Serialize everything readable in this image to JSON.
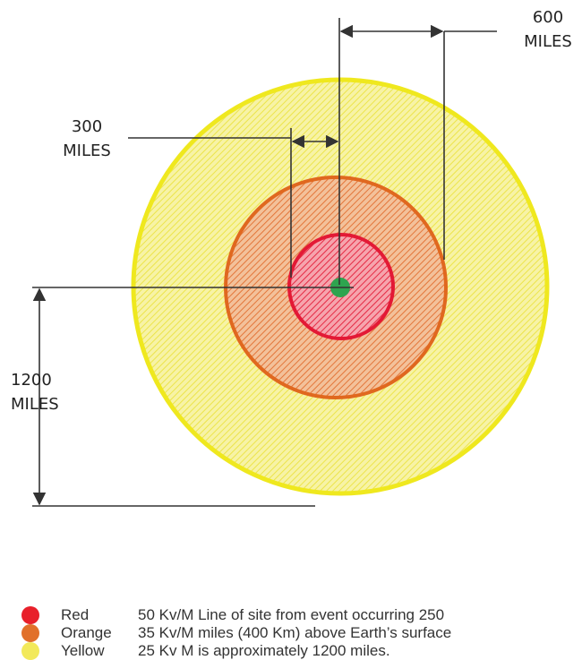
{
  "labels": {
    "top_right": [
      "600",
      "MILES"
    ],
    "upper_left": [
      "300",
      "MILES"
    ],
    "lower_left": [
      "1200",
      "MILES"
    ]
  },
  "zones": [
    {
      "name": "Red",
      "color": "#e8202b",
      "field": "50 Kv/M",
      "description": "50 Kv/M Line of site from event occurring 250"
    },
    {
      "name": "Orange",
      "color": "#e1702a",
      "field": "35 Kv/M",
      "description": "35 Kv/M miles (400 Km) above Earth’s surface"
    },
    {
      "name": "Yellow",
      "color": "#f2e95a",
      "field": "25 Kv M",
      "description": "25 Kv M is approximately 1200 miles."
    }
  ],
  "colors": {
    "yellow_fill": "#f2ec79",
    "yellow_ring": "#efe81e",
    "orange_fill": "#eca06c",
    "orange_ring": "#e0681f",
    "red_fill": "#f0576a",
    "red_ring": "#e31935",
    "center": "#2ea44f",
    "lines": "#333333"
  }
}
